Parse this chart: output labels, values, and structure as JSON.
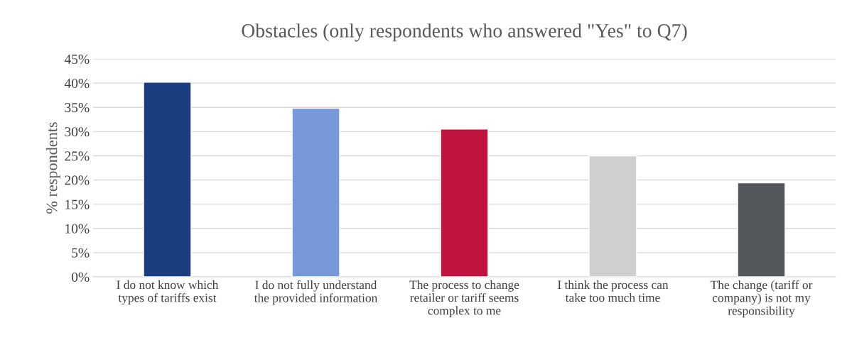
{
  "chart_data": {
    "type": "bar",
    "title": "Obstacles (only respondents who answered \"Yes\" to Q7)",
    "ylabel": "% respondents",
    "categories": [
      "I do not know which\ntypes of tariffs exist",
      "I do not fully understand\nthe provided information",
      "The process to change\nretailer or tariff seems\ncomplex to me",
      "I think the process can\ntake too much time",
      "The change (tariff or\ncompany) is not my\nresponsibility"
    ],
    "values": [
      40.2,
      34.8,
      30.5,
      25.0,
      19.4
    ],
    "colors": [
      "#1a3d80",
      "#7799da",
      "#c0143e",
      "#d0cecf",
      "#53565a"
    ],
    "ylim": [
      0,
      45
    ],
    "yticks": [
      {
        "value": 0,
        "label": "0%"
      },
      {
        "value": 5,
        "label": "5%"
      },
      {
        "value": 10,
        "label": "10%"
      },
      {
        "value": 15,
        "label": "15%"
      },
      {
        "value": 20,
        "label": "20%"
      },
      {
        "value": 25,
        "label": "25%"
      },
      {
        "value": 30,
        "label": "30%"
      },
      {
        "value": 35,
        "label": "35%"
      },
      {
        "value": 40,
        "label": "40%"
      },
      {
        "value": 45,
        "label": "45%"
      }
    ],
    "grid": "y",
    "legend": false
  }
}
